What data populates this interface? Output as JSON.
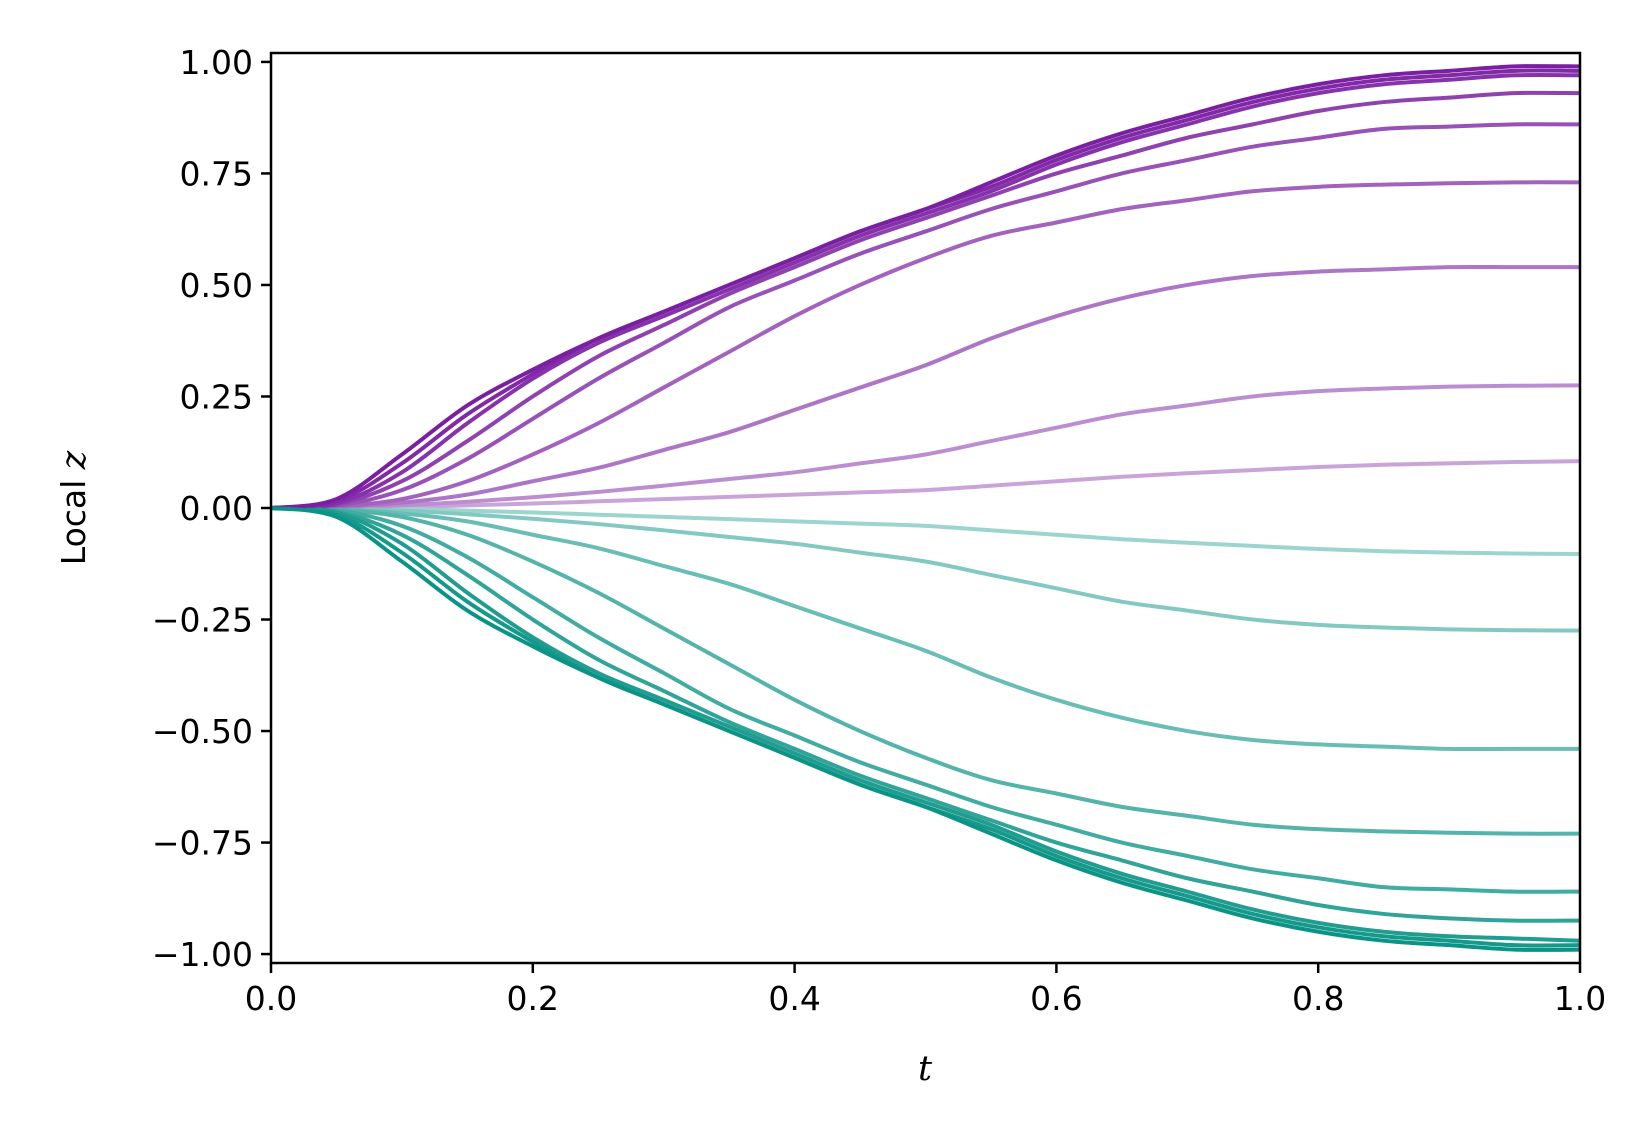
{
  "chart_data": {
    "type": "line",
    "xlabel": "t",
    "ylabel_prefix": "Local ",
    "ylabel_var": "z",
    "xlim": [
      0.0,
      1.0
    ],
    "ylim": [
      -1.02,
      1.02
    ],
    "x_ticks": [
      "0.0",
      "0.2",
      "0.4",
      "0.6",
      "0.8",
      "1.0"
    ],
    "y_ticks": [
      "1.00",
      "0.75",
      "0.50",
      "0.25",
      "0.00",
      "−0.25",
      "−0.50",
      "−0.75",
      "−1.00"
    ],
    "x_tick_values": [
      0.0,
      0.2,
      0.4,
      0.6,
      0.8,
      1.0
    ],
    "y_tick_values": [
      1.0,
      0.75,
      0.5,
      0.25,
      0.0,
      -0.25,
      -0.5,
      -0.75,
      -1.0
    ],
    "grid": false,
    "colors": {
      "positive": "#7b1fa2",
      "negative": "#0b9486"
    },
    "x": [
      0.0,
      0.05,
      0.1,
      0.15,
      0.2,
      0.25,
      0.3,
      0.35,
      0.4,
      0.45,
      0.5,
      0.55,
      0.6,
      0.65,
      0.7,
      0.75,
      0.8,
      0.85,
      0.9,
      0.95,
      1.0
    ],
    "series": [
      {
        "sign": "positive",
        "intensity": 1.0,
        "values": [
          0,
          0.02,
          0.12,
          0.23,
          0.31,
          0.38,
          0.44,
          0.5,
          0.56,
          0.62,
          0.67,
          0.73,
          0.79,
          0.84,
          0.88,
          0.92,
          0.95,
          0.97,
          0.98,
          0.99,
          0.99
        ]
      },
      {
        "sign": "positive",
        "intensity": 0.95,
        "values": [
          0,
          0.015,
          0.1,
          0.21,
          0.3,
          0.38,
          0.44,
          0.5,
          0.56,
          0.62,
          0.67,
          0.72,
          0.78,
          0.83,
          0.87,
          0.91,
          0.94,
          0.96,
          0.97,
          0.98,
          0.98
        ]
      },
      {
        "sign": "positive",
        "intensity": 0.9,
        "values": [
          0,
          0.01,
          0.08,
          0.19,
          0.29,
          0.37,
          0.43,
          0.49,
          0.55,
          0.61,
          0.66,
          0.71,
          0.77,
          0.82,
          0.86,
          0.9,
          0.93,
          0.95,
          0.96,
          0.97,
          0.97
        ]
      },
      {
        "sign": "positive",
        "intensity": 0.82,
        "values": [
          0,
          0.008,
          0.06,
          0.15,
          0.25,
          0.34,
          0.41,
          0.48,
          0.54,
          0.6,
          0.65,
          0.7,
          0.75,
          0.79,
          0.83,
          0.86,
          0.89,
          0.91,
          0.92,
          0.93,
          0.93
        ]
      },
      {
        "sign": "positive",
        "intensity": 0.74,
        "values": [
          0,
          0.005,
          0.04,
          0.11,
          0.2,
          0.29,
          0.37,
          0.45,
          0.51,
          0.57,
          0.62,
          0.67,
          0.71,
          0.75,
          0.78,
          0.81,
          0.83,
          0.85,
          0.855,
          0.86,
          0.86
        ]
      },
      {
        "sign": "positive",
        "intensity": 0.65,
        "values": [
          0,
          0.003,
          0.02,
          0.06,
          0.12,
          0.19,
          0.27,
          0.35,
          0.43,
          0.5,
          0.56,
          0.61,
          0.64,
          0.67,
          0.69,
          0.71,
          0.72,
          0.725,
          0.728,
          0.73,
          0.73
        ]
      },
      {
        "sign": "positive",
        "intensity": 0.55,
        "values": [
          0,
          0.002,
          0.012,
          0.03,
          0.06,
          0.09,
          0.13,
          0.17,
          0.22,
          0.27,
          0.32,
          0.38,
          0.43,
          0.47,
          0.5,
          0.52,
          0.53,
          0.535,
          0.54,
          0.54,
          0.54
        ]
      },
      {
        "sign": "positive",
        "intensity": 0.42,
        "values": [
          0,
          0.001,
          0.006,
          0.014,
          0.024,
          0.036,
          0.05,
          0.065,
          0.08,
          0.1,
          0.12,
          0.15,
          0.18,
          0.21,
          0.23,
          0.25,
          0.262,
          0.268,
          0.272,
          0.274,
          0.275
        ]
      },
      {
        "sign": "positive",
        "intensity": 0.3,
        "values": [
          0,
          0.0005,
          0.002,
          0.006,
          0.01,
          0.015,
          0.02,
          0.025,
          0.03,
          0.035,
          0.04,
          0.05,
          0.06,
          0.07,
          0.078,
          0.085,
          0.092,
          0.097,
          0.1,
          0.103,
          0.105
        ]
      },
      {
        "sign": "negative",
        "intensity": 0.3,
        "values": [
          0,
          -0.0005,
          -0.002,
          -0.006,
          -0.01,
          -0.015,
          -0.02,
          -0.025,
          -0.03,
          -0.035,
          -0.04,
          -0.05,
          -0.06,
          -0.07,
          -0.078,
          -0.085,
          -0.092,
          -0.097,
          -0.1,
          -0.102,
          -0.103
        ]
      },
      {
        "sign": "negative",
        "intensity": 0.42,
        "values": [
          0,
          -0.001,
          -0.006,
          -0.014,
          -0.024,
          -0.036,
          -0.05,
          -0.065,
          -0.08,
          -0.1,
          -0.12,
          -0.15,
          -0.18,
          -0.21,
          -0.23,
          -0.25,
          -0.262,
          -0.268,
          -0.272,
          -0.274,
          -0.275
        ]
      },
      {
        "sign": "negative",
        "intensity": 0.55,
        "values": [
          0,
          -0.002,
          -0.012,
          -0.03,
          -0.06,
          -0.09,
          -0.13,
          -0.17,
          -0.22,
          -0.27,
          -0.32,
          -0.38,
          -0.43,
          -0.47,
          -0.5,
          -0.52,
          -0.53,
          -0.535,
          -0.54,
          -0.54,
          -0.54
        ]
      },
      {
        "sign": "negative",
        "intensity": 0.65,
        "values": [
          0,
          -0.003,
          -0.02,
          -0.06,
          -0.12,
          -0.19,
          -0.27,
          -0.35,
          -0.43,
          -0.5,
          -0.56,
          -0.61,
          -0.64,
          -0.67,
          -0.69,
          -0.71,
          -0.72,
          -0.725,
          -0.728,
          -0.73,
          -0.73
        ]
      },
      {
        "sign": "negative",
        "intensity": 0.74,
        "values": [
          0,
          -0.005,
          -0.04,
          -0.11,
          -0.2,
          -0.29,
          -0.37,
          -0.45,
          -0.51,
          -0.57,
          -0.62,
          -0.67,
          -0.71,
          -0.75,
          -0.78,
          -0.81,
          -0.83,
          -0.85,
          -0.855,
          -0.86,
          -0.86
        ]
      },
      {
        "sign": "negative",
        "intensity": 0.82,
        "values": [
          0,
          -0.008,
          -0.06,
          -0.15,
          -0.25,
          -0.34,
          -0.41,
          -0.48,
          -0.54,
          -0.6,
          -0.65,
          -0.7,
          -0.75,
          -0.79,
          -0.83,
          -0.86,
          -0.89,
          -0.91,
          -0.92,
          -0.925,
          -0.925
        ]
      },
      {
        "sign": "negative",
        "intensity": 0.9,
        "values": [
          0,
          -0.01,
          -0.08,
          -0.19,
          -0.29,
          -0.37,
          -0.43,
          -0.49,
          -0.55,
          -0.61,
          -0.66,
          -0.71,
          -0.77,
          -0.82,
          -0.86,
          -0.9,
          -0.93,
          -0.95,
          -0.96,
          -0.965,
          -0.97
        ]
      },
      {
        "sign": "negative",
        "intensity": 0.95,
        "values": [
          0,
          -0.015,
          -0.1,
          -0.21,
          -0.3,
          -0.38,
          -0.44,
          -0.5,
          -0.56,
          -0.62,
          -0.67,
          -0.72,
          -0.78,
          -0.83,
          -0.87,
          -0.91,
          -0.94,
          -0.96,
          -0.97,
          -0.98,
          -0.98
        ]
      },
      {
        "sign": "negative",
        "intensity": 1.0,
        "values": [
          0,
          -0.02,
          -0.12,
          -0.23,
          -0.31,
          -0.38,
          -0.44,
          -0.5,
          -0.56,
          -0.62,
          -0.67,
          -0.73,
          -0.79,
          -0.84,
          -0.88,
          -0.92,
          -0.95,
          -0.97,
          -0.98,
          -0.99,
          -0.99
        ]
      }
    ]
  }
}
